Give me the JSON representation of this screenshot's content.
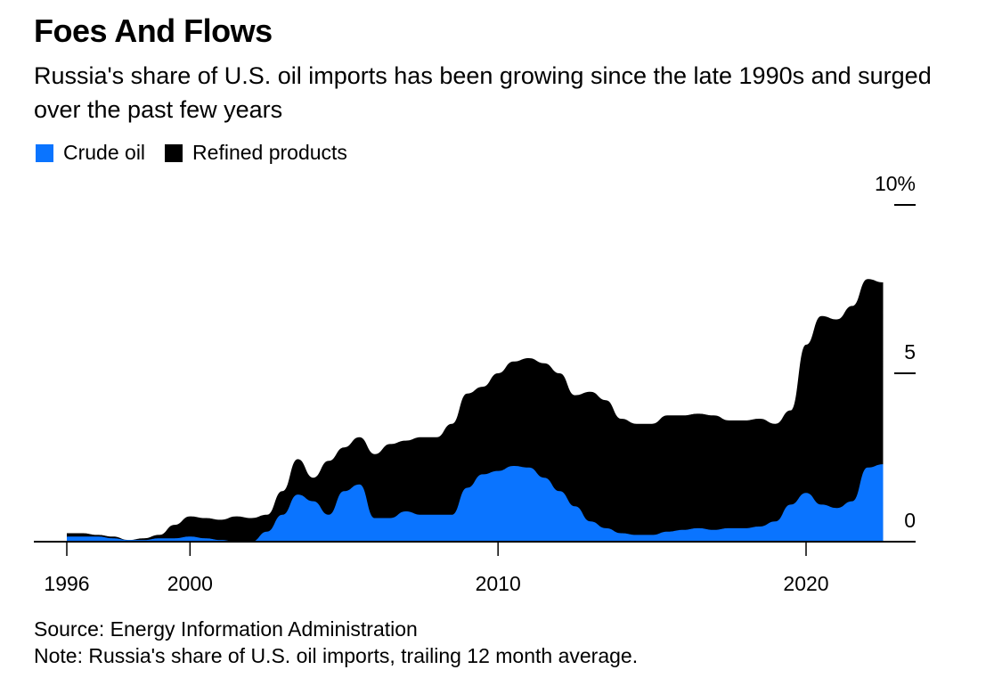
{
  "title": "Foes And Flows",
  "subtitle": "Russia's share of U.S. oil imports has been growing since the late 1990s and surged over the past few years",
  "legend": [
    {
      "label": "Crude oil",
      "color": "#0a74ff"
    },
    {
      "label": "Refined products",
      "color": "#000000"
    }
  ],
  "source": "Source: Energy Information Administration",
  "note": "Note: Russia's share of U.S. oil imports, trailing 12 month average.",
  "chart_data": {
    "type": "area",
    "stacked": true,
    "title": "Foes And Flows",
    "xlabel": "",
    "ylabel": "",
    "x_ticks": [
      "1996",
      "2000",
      "2010",
      "2020"
    ],
    "y_ticks": [
      "0",
      "5",
      "10%"
    ],
    "xlim": [
      1995,
      2023.5
    ],
    "ylim": [
      0,
      10
    ],
    "y_axis_position": "right",
    "legend_position": "top-left",
    "grid": false,
    "x": [
      1996.0,
      1996.5,
      1997.0,
      1997.5,
      1998.0,
      1998.5,
      1999.0,
      1999.5,
      2000.0,
      2000.5,
      2001.0,
      2001.5,
      2002.0,
      2002.5,
      2003.0,
      2003.5,
      2004.0,
      2004.5,
      2005.0,
      2005.5,
      2006.0,
      2006.5,
      2007.0,
      2007.5,
      2008.0,
      2008.5,
      2009.0,
      2009.5,
      2010.0,
      2010.5,
      2011.0,
      2011.5,
      2012.0,
      2012.5,
      2013.0,
      2013.5,
      2014.0,
      2014.5,
      2015.0,
      2015.5,
      2016.0,
      2016.5,
      2017.0,
      2017.5,
      2018.0,
      2018.5,
      2019.0,
      2019.5,
      2020.0,
      2020.5,
      2021.0,
      2021.5,
      2022.0,
      2022.5
    ],
    "series": [
      {
        "name": "Crude oil",
        "color": "#0a74ff",
        "values": [
          0.15,
          0.15,
          0.15,
          0.1,
          0.05,
          0.05,
          0.1,
          0.1,
          0.15,
          0.1,
          0.05,
          0.0,
          0.0,
          0.3,
          0.8,
          1.4,
          1.2,
          0.8,
          1.5,
          1.7,
          0.7,
          0.7,
          0.9,
          0.8,
          0.8,
          0.8,
          1.6,
          2.0,
          2.1,
          2.25,
          2.2,
          1.9,
          1.5,
          1.05,
          0.6,
          0.4,
          0.25,
          0.2,
          0.2,
          0.3,
          0.35,
          0.4,
          0.35,
          0.4,
          0.4,
          0.45,
          0.6,
          1.1,
          1.45,
          1.1,
          1.0,
          1.2,
          2.2,
          2.3
        ]
      },
      {
        "name": "Refined products",
        "color": "#000000",
        "values": [
          0.1,
          0.1,
          0.05,
          0.05,
          0.0,
          0.05,
          0.1,
          0.4,
          0.6,
          0.6,
          0.6,
          0.75,
          0.7,
          0.5,
          0.7,
          1.05,
          0.7,
          1.6,
          1.3,
          1.4,
          1.9,
          2.2,
          2.1,
          2.3,
          2.3,
          2.7,
          2.8,
          2.6,
          2.9,
          3.1,
          3.25,
          3.4,
          3.5,
          3.3,
          3.85,
          3.8,
          3.4,
          3.3,
          3.3,
          3.45,
          3.4,
          3.4,
          3.4,
          3.2,
          3.2,
          3.2,
          2.9,
          2.8,
          4.4,
          5.6,
          5.6,
          5.8,
          5.6,
          5.4
        ]
      }
    ]
  }
}
